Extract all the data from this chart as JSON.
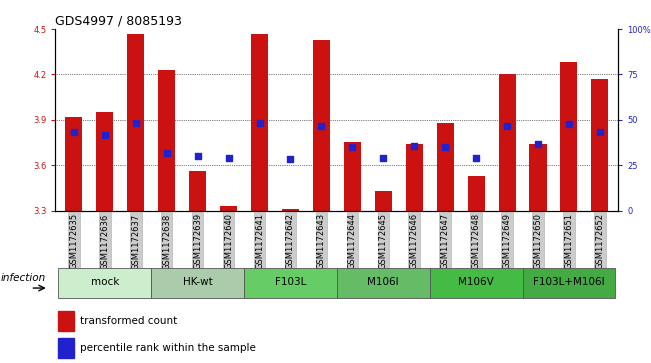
{
  "title": "GDS4997 / 8085193",
  "samples": [
    "GSM1172635",
    "GSM1172636",
    "GSM1172637",
    "GSM1172638",
    "GSM1172639",
    "GSM1172640",
    "GSM1172641",
    "GSM1172642",
    "GSM1172643",
    "GSM1172644",
    "GSM1172645",
    "GSM1172646",
    "GSM1172647",
    "GSM1172648",
    "GSM1172649",
    "GSM1172650",
    "GSM1172651",
    "GSM1172652"
  ],
  "bar_values": [
    3.92,
    3.95,
    4.47,
    4.23,
    3.56,
    3.33,
    4.47,
    3.31,
    4.43,
    3.75,
    3.43,
    3.74,
    3.88,
    3.53,
    4.2,
    3.74,
    4.28,
    4.17
  ],
  "dot_values": [
    3.82,
    3.8,
    3.88,
    3.68,
    3.66,
    3.65,
    3.88,
    3.64,
    3.86,
    3.72,
    3.65,
    3.73,
    3.72,
    3.65,
    3.86,
    3.74,
    3.87,
    3.82
  ],
  "bar_color": "#cc1111",
  "dot_color": "#2222cc",
  "ylim_left": [
    3.3,
    4.5
  ],
  "ylim_right": [
    0,
    100
  ],
  "yticks_left": [
    3.3,
    3.6,
    3.9,
    4.2,
    4.5
  ],
  "yticks_right": [
    0,
    25,
    50,
    75,
    100
  ],
  "ytick_labels_right": [
    "0",
    "25",
    "50",
    "75",
    "100%"
  ],
  "groups": [
    {
      "label": "mock",
      "start": 0,
      "end": 2,
      "color": "#cceecc"
    },
    {
      "label": "HK-wt",
      "start": 3,
      "end": 5,
      "color": "#aaccaa"
    },
    {
      "label": "F103L",
      "start": 6,
      "end": 8,
      "color": "#66cc66"
    },
    {
      "label": "M106I",
      "start": 9,
      "end": 11,
      "color": "#66bb66"
    },
    {
      "label": "M106V",
      "start": 12,
      "end": 14,
      "color": "#44bb44"
    },
    {
      "label": "F103L+M106I",
      "start": 15,
      "end": 17,
      "color": "#44aa44"
    }
  ],
  "infection_label": "infection",
  "legend_bar_label": "transformed count",
  "legend_dot_label": "percentile rank within the sample",
  "bar_width": 0.55,
  "title_fontsize": 9,
  "tick_fontsize": 6,
  "label_fontsize": 7.5,
  "group_label_fontsize": 7.5
}
